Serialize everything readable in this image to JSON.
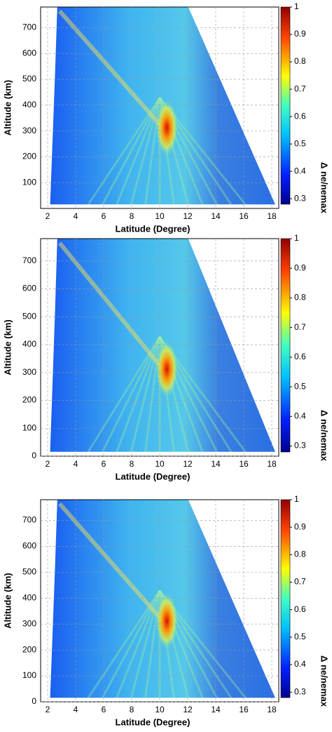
{
  "chart_data": [
    {
      "type": "heatmap",
      "xlabel": "Latitude (Degree)",
      "ylabel": "Altitude (km)",
      "xlim": [
        1.5,
        18.5
      ],
      "xticks": [
        2,
        4,
        6,
        8,
        10,
        12,
        14,
        16,
        18
      ],
      "ylim": [
        0,
        780
      ],
      "yticks": [
        100,
        200,
        300,
        400,
        500,
        600,
        700
      ],
      "grid": true,
      "colorbar": {
        "label": "Δ ne/nemax",
        "lim": [
          0.28,
          1
        ],
        "ticks": [
          0.3,
          0.4,
          0.5,
          0.6,
          0.7,
          0.8,
          0.9,
          1
        ]
      }
    },
    {
      "type": "heatmap",
      "xlabel": "Latitude (Degree)",
      "ylabel": "Altitude (km)",
      "xlim": [
        1.5,
        18.5
      ],
      "xticks": [
        2,
        4,
        6,
        8,
        10,
        12,
        14,
        16,
        18
      ],
      "ylim": [
        0,
        780
      ],
      "yticks": [
        0,
        100,
        200,
        300,
        400,
        500,
        600,
        700
      ],
      "grid": true,
      "colorbar": {
        "label": "Δ ne/nemax",
        "lim": [
          0.28,
          1
        ],
        "ticks": [
          0.3,
          0.4,
          0.5,
          0.6,
          0.7,
          0.8,
          0.9,
          1
        ]
      }
    },
    {
      "type": "heatmap",
      "xlabel": "Latitude (Degree)",
      "ylabel": "Altitude (km)",
      "xlim": [
        1.5,
        18.5
      ],
      "xticks": [
        2,
        4,
        6,
        8,
        10,
        12,
        14,
        16,
        18
      ],
      "ylim": [
        0,
        780
      ],
      "yticks": [
        0,
        100,
        200,
        300,
        400,
        500,
        600,
        700
      ],
      "grid": true,
      "colorbar": {
        "label": "Δ ne/nemax",
        "lim": [
          0.28,
          1
        ],
        "ticks": [
          0.3,
          0.4,
          0.5,
          0.6,
          0.7,
          0.8,
          0.9,
          1
        ]
      }
    }
  ]
}
